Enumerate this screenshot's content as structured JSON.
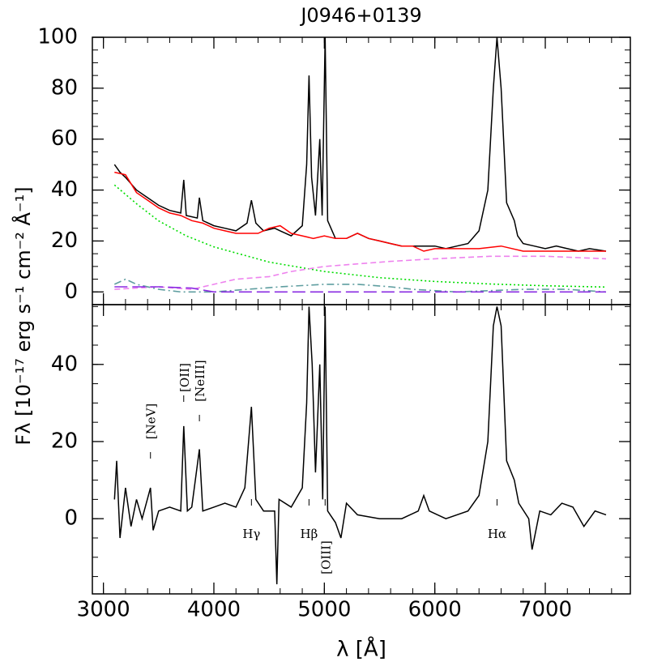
{
  "chart_data": [
    {
      "type": "line",
      "title": "J0946+0139",
      "ylabel": "Fλ [10⁻¹⁷ erg s⁻¹ cm⁻² Å⁻¹]",
      "xlim": [
        2900,
        7770
      ],
      "xticks": [
        3000,
        4000,
        5000,
        6000,
        7000
      ],
      "ylim": [
        -5,
        100
      ],
      "yticks": [
        0,
        20,
        40,
        60,
        80,
        100
      ],
      "series": [
        {
          "color": "#000000",
          "style": "solid",
          "x": [
            3100,
            3150,
            3200,
            3300,
            3400,
            3500,
            3600,
            3700,
            3727,
            3750,
            3850,
            3869,
            3900,
            4000,
            4100,
            4200,
            4300,
            4340,
            4380,
            4450,
            4550,
            4600,
            4700,
            4800,
            4840,
            4861,
            4885,
            4920,
            4959,
            4980,
            5007,
            5030,
            5100,
            5200,
            5300,
            5400,
            5500,
            5600,
            5700,
            5800,
            5900,
            6000,
            6100,
            6200,
            6300,
            6400,
            6480,
            6530,
            6563,
            6600,
            6650,
            6720,
            6750,
            6800,
            6900,
            7000,
            7100,
            7200,
            7300,
            7400,
            7550
          ],
          "values": [
            50,
            47,
            45,
            40,
            37,
            34,
            32,
            31,
            44,
            30,
            29,
            37,
            28,
            26,
            25,
            24,
            27,
            36,
            27,
            24,
            25,
            24,
            22,
            26,
            50,
            85,
            45,
            30,
            60,
            30,
            100,
            28,
            21,
            21,
            23,
            21,
            20,
            19,
            18,
            18,
            18,
            18,
            17,
            18,
            19,
            24,
            40,
            80,
            100,
            80,
            35,
            28,
            22,
            19,
            18,
            17,
            18,
            17,
            16,
            17,
            16
          ]
        },
        {
          "color": "#ff0000",
          "style": "solid",
          "x": [
            3100,
            3200,
            3300,
            3400,
            3500,
            3600,
            3700,
            3800,
            3900,
            4000,
            4100,
            4200,
            4300,
            4400,
            4500,
            4600,
            4700,
            4800,
            4900,
            5000,
            5100,
            5200,
            5300,
            5400,
            5500,
            5600,
            5700,
            5800,
            5900,
            6000,
            6200,
            6400,
            6600,
            6800,
            7000,
            7200,
            7400,
            7550
          ],
          "values": [
            47,
            46,
            39,
            36,
            33,
            31,
            30,
            28,
            27,
            25,
            24,
            23,
            23,
            23,
            25,
            26,
            23,
            22,
            21,
            22,
            21,
            21,
            23,
            21,
            20,
            19,
            18,
            18,
            16,
            17,
            17,
            17,
            18,
            16,
            16,
            16,
            16,
            16
          ]
        },
        {
          "color": "#00dd00",
          "style": "dotted",
          "x": [
            3100,
            3300,
            3500,
            3750,
            4000,
            4500,
            5000,
            5500,
            6000,
            6500,
            7000,
            7550
          ],
          "values": [
            42,
            34.6,
            27.9,
            22,
            17.7,
            11.7,
            8,
            5.6,
            4.1,
            3.1,
            2.4,
            1.9
          ]
        },
        {
          "color": "#ee82ee",
          "style": "dashed",
          "x": [
            3100,
            3500,
            3800,
            4000,
            4200,
            4500,
            4700,
            5000,
            5300,
            5600,
            6000,
            6500,
            7000,
            7550
          ],
          "values": [
            1,
            2,
            1,
            3,
            5,
            6,
            8,
            10,
            11,
            12,
            13,
            14,
            14,
            13
          ]
        },
        {
          "color": "#5f9ea0",
          "style": "dashdot",
          "x": [
            3100,
            3200,
            3300,
            3500,
            3700,
            4000,
            4300,
            4600,
            5000,
            5300,
            5600,
            5800,
            6200,
            6800,
            7200,
            7550
          ],
          "values": [
            3,
            5,
            3,
            1,
            0,
            0,
            1,
            2,
            3,
            3,
            2,
            1,
            0,
            1,
            1,
            0
          ]
        },
        {
          "color": "#8a2be2",
          "style": "longdash",
          "x": [
            3100,
            3500,
            3800,
            4000,
            5000,
            7550
          ],
          "values": [
            2,
            2,
            1.5,
            0,
            0,
            0
          ]
        }
      ]
    },
    {
      "type": "line",
      "xlabel": "λ [Å]",
      "xlim": [
        2900,
        7770
      ],
      "xticks": [
        3000,
        4000,
        5000,
        6000,
        7000
      ],
      "ylim": [
        -19.5,
        55.5
      ],
      "yticks": [
        0,
        20,
        40
      ],
      "series": [
        {
          "color": "#000000",
          "style": "solid",
          "x": [
            3100,
            3120,
            3150,
            3200,
            3250,
            3300,
            3350,
            3426,
            3450,
            3500,
            3600,
            3700,
            3727,
            3760,
            3800,
            3869,
            3900,
            4000,
            4100,
            4200,
            4280,
            4340,
            4380,
            4450,
            4550,
            4570,
            4590,
            4700,
            4800,
            4840,
            4861,
            4890,
            4920,
            4959,
            4985,
            5007,
            5030,
            5100,
            5150,
            5200,
            5300,
            5500,
            5700,
            5850,
            5900,
            5950,
            6100,
            6300,
            6400,
            6480,
            6530,
            6563,
            6600,
            6650,
            6720,
            6760,
            6850,
            6880,
            6950,
            7050,
            7150,
            7250,
            7350,
            7450,
            7550
          ],
          "values": [
            5,
            15,
            -5,
            8,
            -2,
            5,
            0,
            8,
            -3,
            2,
            3,
            2,
            24,
            2,
            3,
            18,
            2,
            3,
            4,
            3,
            8,
            29,
            5,
            2,
            2,
            -17,
            5,
            3,
            8,
            30,
            55,
            40,
            12,
            40,
            5,
            55,
            2,
            -1,
            -5,
            4,
            1,
            0,
            0,
            2,
            6,
            2,
            0,
            2,
            6,
            20,
            50,
            55,
            50,
            15,
            10,
            4,
            0,
            -8,
            2,
            1,
            4,
            3,
            -2,
            2,
            1
          ]
        }
      ],
      "annotations": [
        {
          "text": "[NeV]",
          "x": 3426,
          "side": "above",
          "rotated": true
        },
        {
          "text": "[OII]",
          "x": 3727,
          "side": "above",
          "rotated": true
        },
        {
          "text": "[NeIII]",
          "x": 3869,
          "side": "above",
          "rotated": true
        },
        {
          "text": "Hγ",
          "x": 4340,
          "side": "below",
          "rotated": false
        },
        {
          "text": "Hβ",
          "x": 4861,
          "side": "below",
          "rotated": false
        },
        {
          "text": "[OIII]",
          "x": 5007,
          "side": "below",
          "rotated": true
        },
        {
          "text": "Hα",
          "x": 6563,
          "side": "below",
          "rotated": false
        }
      ]
    }
  ]
}
